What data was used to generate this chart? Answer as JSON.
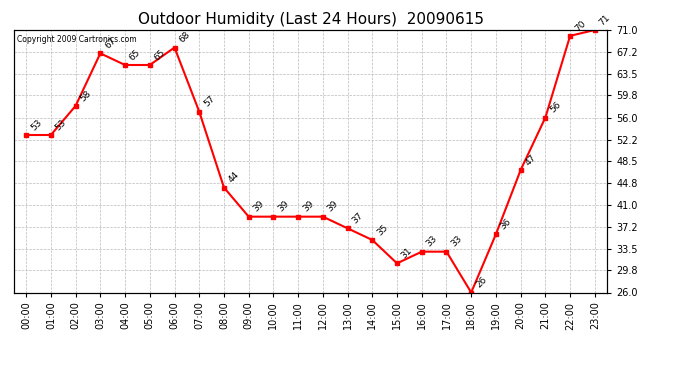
{
  "title": "Outdoor Humidity (Last 24 Hours)  20090615",
  "copyright": "Copyright 2009 Cartronics.com",
  "hours": [
    "00:00",
    "01:00",
    "02:00",
    "03:00",
    "04:00",
    "05:00",
    "06:00",
    "07:00",
    "08:00",
    "09:00",
    "10:00",
    "11:00",
    "12:00",
    "13:00",
    "14:00",
    "15:00",
    "16:00",
    "17:00",
    "18:00",
    "19:00",
    "20:00",
    "21:00",
    "22:00",
    "23:00"
  ],
  "values": [
    53,
    53,
    58,
    67,
    65,
    65,
    68,
    57,
    44,
    39,
    39,
    39,
    39,
    37,
    35,
    31,
    33,
    33,
    26,
    36,
    47,
    56,
    70,
    71
  ],
  "ylim_min": 26.0,
  "ylim_max": 71.0,
  "yticks": [
    26.0,
    29.8,
    33.5,
    37.2,
    41.0,
    44.8,
    48.5,
    52.2,
    56.0,
    59.8,
    63.5,
    67.2,
    71.0
  ],
  "line_color": "red",
  "marker_color": "red",
  "bg_color": "white",
  "grid_color": "#bbbbbb",
  "title_fontsize": 11,
  "label_fontsize": 7,
  "annot_fontsize": 6.5
}
